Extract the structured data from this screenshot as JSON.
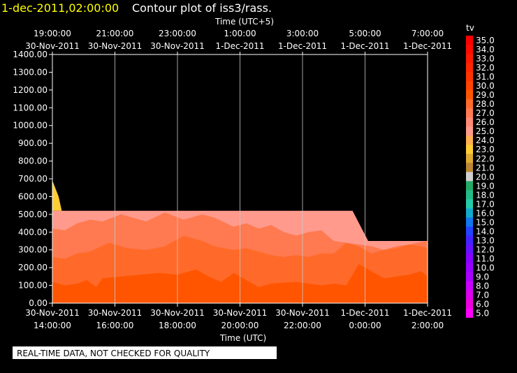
{
  "header": {
    "timestamp": "1-dec-2011,02:00:00",
    "title": "Contour plot of iss3/rass."
  },
  "footer": {
    "disclaimer": "REAL-TIME DATA, NOT CHECKED FOR QUALITY"
  },
  "colors": {
    "background": "#000000",
    "timestamp": "#ffff00",
    "text": "#ffffff",
    "grid": "#c8c8c8"
  },
  "chart_data": {
    "type": "heatmap",
    "title": "Contour plot of iss3/rass.",
    "top_axis": {
      "label": "Time (UTC+5)",
      "ticks": [
        {
          "time": "19:00:00",
          "date": "30-Nov-2011"
        },
        {
          "time": "21:00:00",
          "date": "30-Nov-2011"
        },
        {
          "time": "23:00:00",
          "date": "30-Nov-2011"
        },
        {
          "time": "1:00:00",
          "date": "1-Dec-2011"
        },
        {
          "time": "3:00:00",
          "date": "1-Dec-2011"
        },
        {
          "time": "5:00:00",
          "date": "1-Dec-2011"
        },
        {
          "time": "7:00:00",
          "date": "1-Dec-2011"
        }
      ]
    },
    "bottom_axis": {
      "label": "Time (UTC)",
      "ticks": [
        {
          "date": "30-Nov-2011",
          "time": "14:00:00"
        },
        {
          "date": "30-Nov-2011",
          "time": "16:00:00"
        },
        {
          "date": "30-Nov-2011",
          "time": "18:00:00"
        },
        {
          "date": "30-Nov-2011",
          "time": "20:00:00"
        },
        {
          "date": "30-Nov-2011",
          "time": "22:00:00"
        },
        {
          "date": "1-Dec-2011",
          "time": "0:00:00"
        },
        {
          "date": "1-Dec-2011",
          "time": "2:00:00"
        }
      ],
      "range_hours": [
        14,
        26
      ]
    },
    "y_axis": {
      "ticks": [
        "0.00",
        "100.00",
        "200.00",
        "300.00",
        "400.00",
        "500.00",
        "600.00",
        "700.00",
        "800.00",
        "900.00",
        "1000.00",
        "1100.00",
        "1200.00",
        "1300.00",
        "1400.00"
      ],
      "range": [
        0,
        1400
      ]
    },
    "grid": true,
    "legend": {
      "title": "tv",
      "position": "right",
      "entries": [
        {
          "label": "35.0",
          "color": "#ff0000"
        },
        {
          "label": "34.0",
          "color": "#ff0a00"
        },
        {
          "label": "33.0",
          "color": "#ff1800"
        },
        {
          "label": "32.0",
          "color": "#ff2600"
        },
        {
          "label": "31.0",
          "color": "#ff3300"
        },
        {
          "label": "30.0",
          "color": "#ff4400"
        },
        {
          "label": "29.0",
          "color": "#ff5500"
        },
        {
          "label": "28.0",
          "color": "#ff6a2a"
        },
        {
          "label": "27.0",
          "color": "#ff7a50"
        },
        {
          "label": "26.0",
          "color": "#ff8a75"
        },
        {
          "label": "25.0",
          "color": "#ff9a8c"
        },
        {
          "label": "24.0",
          "color": "#ffb050"
        },
        {
          "label": "23.0",
          "color": "#ffcc33"
        },
        {
          "label": "22.0",
          "color": "#ddaa33"
        },
        {
          "label": "21.0",
          "color": "#bb8833"
        },
        {
          "label": "20.0",
          "color": "#cfcfcf"
        },
        {
          "label": "19.0",
          "color": "#22aa66"
        },
        {
          "label": "18.0",
          "color": "#22bb88"
        },
        {
          "label": "17.0",
          "color": "#22ccaa"
        },
        {
          "label": "16.0",
          "color": "#11aacc"
        },
        {
          "label": "15.0",
          "color": "#1177ee"
        },
        {
          "label": "14.0",
          "color": "#2244ff"
        },
        {
          "label": "13.0",
          "color": "#4422ff"
        },
        {
          "label": "12.0",
          "color": "#6611ff"
        },
        {
          "label": "11.0",
          "color": "#8800ff"
        },
        {
          "label": "10.0",
          "color": "#9900ff"
        },
        {
          "label": "9.0",
          "color": "#aa00ff"
        },
        {
          "label": "8.0",
          "color": "#cc00ff"
        },
        {
          "label": "7.0",
          "color": "#dd00ee"
        },
        {
          "label": "6.0",
          "color": "#ee00dd"
        },
        {
          "label": "5.0",
          "color": "#ff00ff"
        }
      ]
    },
    "series": [
      {
        "color": "#ffcc33",
        "x": [
          14.0,
          14.2,
          14.3,
          14.0
        ],
        "y": [
          690,
          600,
          520,
          520
        ]
      },
      {
        "color": "#ff9a8c",
        "x": [
          14.0,
          14.25,
          23.6,
          24.1,
          25.0,
          26.0,
          26.0,
          14.0
        ],
        "y": [
          520,
          520,
          520,
          350,
          350,
          350,
          0,
          0
        ]
      },
      {
        "color": "#ff7a50",
        "x": [
          14.0,
          14.4,
          14.8,
          15.2,
          15.6,
          16.2,
          17.0,
          17.6,
          18.2,
          18.8,
          19.2,
          19.8,
          20.2,
          20.6,
          21.0,
          21.4,
          21.8,
          22.2,
          22.6,
          23.0,
          23.4,
          23.8,
          24.2,
          24.6,
          25.0,
          25.4,
          25.8,
          26.0,
          26.0,
          14.0
        ],
        "y": [
          420,
          410,
          450,
          470,
          460,
          500,
          460,
          510,
          470,
          500,
          480,
          430,
          450,
          420,
          440,
          400,
          380,
          400,
          410,
          350,
          340,
          330,
          320,
          300,
          320,
          330,
          345,
          350,
          0,
          0
        ]
      },
      {
        "color": "#ff6a2a",
        "x": [
          14.0,
          14.4,
          14.8,
          15.2,
          15.8,
          16.4,
          17.0,
          17.6,
          18.2,
          18.8,
          19.2,
          19.8,
          20.2,
          20.6,
          21.0,
          21.4,
          21.8,
          22.2,
          22.6,
          23.0,
          23.4,
          23.8,
          24.2,
          24.6,
          25.0,
          25.4,
          25.8,
          26.0,
          26.0,
          14.0
        ],
        "y": [
          260,
          250,
          280,
          290,
          340,
          310,
          300,
          320,
          380,
          350,
          320,
          300,
          310,
          290,
          270,
          260,
          270,
          260,
          280,
          280,
          340,
          320,
          280,
          300,
          310,
          330,
          320,
          310,
          0,
          0
        ]
      },
      {
        "color": "#ff5500",
        "x": [
          14.0,
          14.4,
          14.8,
          15.1,
          15.4,
          15.6,
          16.2,
          16.8,
          17.4,
          18.0,
          18.6,
          19.0,
          19.4,
          19.8,
          20.2,
          20.6,
          21.0,
          21.4,
          21.8,
          22.2,
          22.6,
          23.0,
          23.4,
          23.8,
          24.2,
          24.6,
          25.0,
          25.4,
          25.8,
          26.0,
          26.0,
          14.0
        ],
        "y": [
          120,
          100,
          110,
          130,
          90,
          140,
          150,
          160,
          170,
          160,
          190,
          150,
          120,
          170,
          130,
          90,
          110,
          115,
          120,
          110,
          100,
          110,
          100,
          220,
          180,
          140,
          150,
          160,
          180,
          150,
          0,
          0
        ]
      }
    ]
  }
}
